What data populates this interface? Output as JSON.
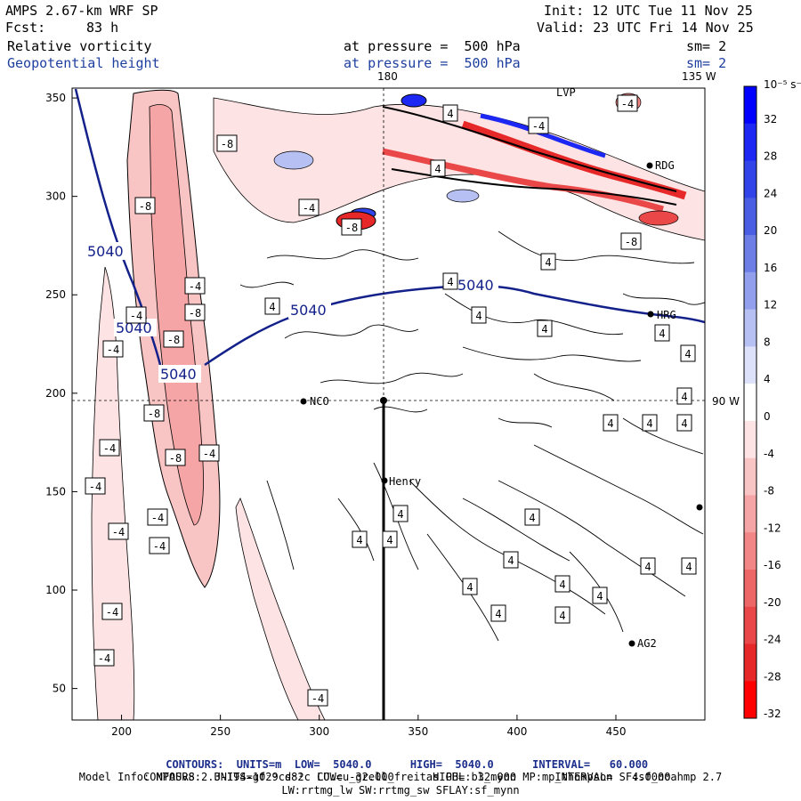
{
  "header": {
    "model": "AMPS 2.67-km WRF SP",
    "fcst_label": "Fcst:",
    "fcst_hours": "83 h",
    "init": "Init: 12 UTC Tue 11 Nov 25",
    "valid": "Valid: 23 UTC Fri 14 Nov 25",
    "field1": "Relative vorticity",
    "field2": "Geopotential height",
    "pressure1": "at pressure =  500 hPa",
    "pressure2": "at pressure =  500 hPa",
    "smooth1": "sm= 2",
    "smooth2": "sm= 2"
  },
  "map": {
    "meridian_label": "180",
    "lon135_label": "135 W",
    "lon90_label": "90 W",
    "stations": [
      "NCO",
      "Henry",
      "HRG",
      "RDG",
      "AG2",
      "LVP"
    ],
    "height_contour_label": "5040",
    "x_ticks": [
      "200",
      "250",
      "300",
      "350",
      "400",
      "450"
    ],
    "y_ticks": [
      "350",
      "300",
      "250",
      "200",
      "150",
      "100",
      "50"
    ],
    "vort_labels_pos": [
      "4"
    ],
    "vort_labels_neg": [
      "-4",
      "-8"
    ]
  },
  "colorbar": {
    "units": "10⁻⁵ s⁻¹",
    "labels": [
      "32",
      "28",
      "24",
      "20",
      "16",
      "12",
      "8",
      "4",
      "0",
      "-4",
      "-8",
      "-12",
      "-16",
      "-20",
      "-24",
      "-28",
      "-32"
    ],
    "colors": [
      "#0000ff",
      "#1c27f3",
      "#3144ea",
      "#4a5ee4",
      "#6d7fe7",
      "#929fec",
      "#b7c0f2",
      "#dde1f9",
      "#ffffff",
      "#fde3e3",
      "#f9c4c4",
      "#f5a5a5",
      "#f28686",
      "#ee6767",
      "#ea4848",
      "#e62828",
      "#ff0000"
    ]
  },
  "footer": {
    "line1_contours": "CONTOURS:  UNITS=m  LOW=  5040.0",
    "line1_high": "HIGH=  5040.0",
    "line1_interval": "INTERVAL=   60.000",
    "line2_contours": "CONTOURS:  UNITS=10⁻⁵ s⁻¹  LOW= -32.000",
    "line2_high": "HIGH=  32.000",
    "line2_interval": "INTERVAL=   4.0000",
    "model_info": "Model Info: MPASv8.2.3-194-gf29cd82c CU:cu_grell_freitas PBL:bl_mynn MP:mp_thompson SF:sf_noahmp 2.7",
    "model_info2": "LW:rrtmg_lw SW:rrtmg_sw SFLAY:sf_mynn"
  }
}
